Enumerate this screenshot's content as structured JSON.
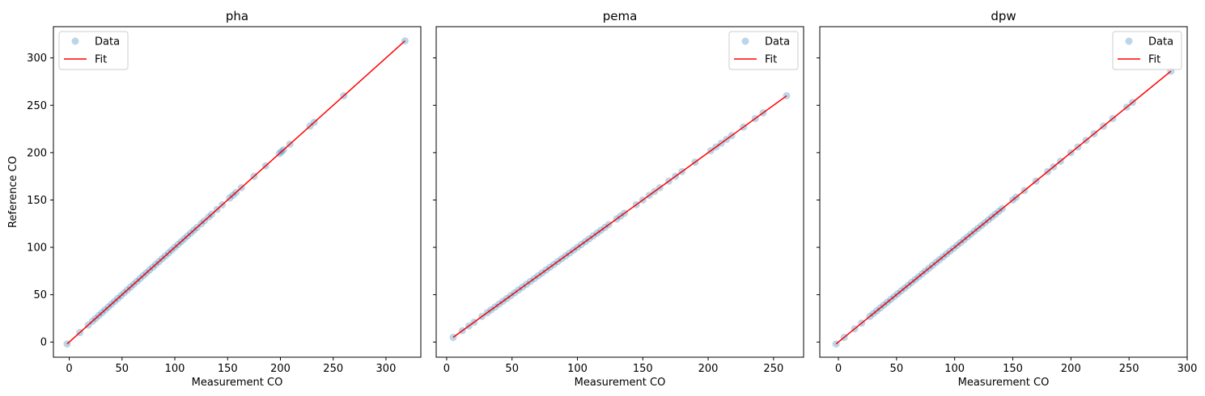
{
  "chart_data": [
    {
      "type": "scatter",
      "title": "pha",
      "xlabel": "Measurement CO",
      "ylabel": "Reference CO",
      "xlim": [
        -15,
        333
      ],
      "ylim": [
        -16,
        333
      ],
      "xticks": [
        0,
        50,
        100,
        150,
        200,
        250,
        300
      ],
      "yticks": [
        0,
        50,
        100,
        150,
        200,
        250,
        300
      ],
      "legend_position": "upper-left",
      "series": [
        {
          "name": "Data",
          "kind": "scatter",
          "x": [
            -2,
            10,
            18,
            22,
            25,
            28,
            31,
            34,
            37,
            40,
            43,
            46,
            49,
            52,
            55,
            58,
            61,
            64,
            67,
            70,
            73,
            76,
            79,
            82,
            85,
            88,
            91,
            94,
            97,
            100,
            103,
            106,
            109,
            112,
            115,
            118,
            121,
            125,
            128,
            132,
            135,
            140,
            145,
            152,
            155,
            158,
            163,
            175,
            186,
            199,
            201,
            203,
            209,
            228,
            232,
            260,
            318
          ],
          "y": [
            -2,
            10,
            18,
            22,
            25,
            28,
            31,
            34,
            37,
            40,
            43,
            46,
            49,
            52,
            55,
            58,
            61,
            64,
            67,
            70,
            73,
            76,
            79,
            82,
            85,
            88,
            91,
            94,
            97,
            100,
            103,
            106,
            109,
            112,
            115,
            118,
            121,
            125,
            128,
            132,
            135,
            140,
            145,
            152,
            155,
            158,
            163,
            175,
            186,
            199,
            201,
            203,
            209,
            228,
            232,
            260,
            318
          ]
        },
        {
          "name": "Fit",
          "kind": "line",
          "x": [
            -2,
            318
          ],
          "y": [
            -2,
            318
          ]
        }
      ]
    },
    {
      "type": "scatter",
      "title": "pema",
      "xlabel": "Measurement CO",
      "ylabel": "",
      "xlim": [
        -8,
        273
      ],
      "ylim": [
        -16,
        333
      ],
      "xticks": [
        0,
        50,
        100,
        150,
        200,
        250
      ],
      "yticks": [
        0,
        50,
        100,
        150,
        200,
        250,
        300
      ],
      "legend_position": "upper-right",
      "series": [
        {
          "name": "Data",
          "kind": "scatter",
          "x": [
            5,
            12,
            17,
            21,
            27,
            31,
            34,
            37,
            40,
            43,
            46,
            49,
            52,
            55,
            58,
            61,
            64,
            67,
            70,
            73,
            76,
            79,
            82,
            85,
            88,
            91,
            94,
            97,
            100,
            103,
            106,
            109,
            112,
            115,
            118,
            121,
            124,
            130,
            133,
            136,
            145,
            150,
            155,
            159,
            163,
            170,
            175,
            180,
            190,
            202,
            206,
            210,
            214,
            218,
            227,
            236,
            242,
            260
          ],
          "y": [
            5,
            12,
            17,
            21,
            27,
            31,
            34,
            37,
            40,
            43,
            46,
            49,
            52,
            55,
            58,
            61,
            64,
            67,
            70,
            73,
            76,
            79,
            82,
            85,
            88,
            91,
            94,
            97,
            100,
            103,
            106,
            109,
            112,
            115,
            118,
            121,
            124,
            130,
            133,
            136,
            145,
            150,
            155,
            159,
            163,
            170,
            175,
            180,
            190,
            202,
            206,
            210,
            214,
            218,
            227,
            236,
            242,
            260
          ]
        },
        {
          "name": "Fit",
          "kind": "line",
          "x": [
            5,
            260
          ],
          "y": [
            5,
            260
          ]
        }
      ]
    },
    {
      "type": "scatter",
      "title": "dpw",
      "xlabel": "Measurement CO",
      "ylabel": "",
      "xlim": [
        -16,
        300
      ],
      "ylim": [
        -16,
        333
      ],
      "xticks": [
        0,
        50,
        100,
        150,
        200,
        250,
        300
      ],
      "yticks": [
        0,
        50,
        100,
        150,
        200,
        250,
        300
      ],
      "legend_position": "upper-right",
      "series": [
        {
          "name": "Data",
          "kind": "scatter",
          "x": [
            -2,
            5,
            14,
            20,
            27,
            30,
            33,
            36,
            39,
            42,
            45,
            48,
            51,
            54,
            57,
            60,
            63,
            66,
            69,
            72,
            75,
            78,
            81,
            84,
            87,
            90,
            93,
            96,
            99,
            102,
            105,
            108,
            111,
            114,
            117,
            120,
            123,
            126,
            129,
            132,
            135,
            138,
            141,
            150,
            153,
            160,
            170,
            180,
            185,
            191,
            200,
            206,
            213,
            220,
            228,
            236,
            248,
            253,
            286
          ],
          "y": [
            -2,
            5,
            14,
            20,
            27,
            30,
            33,
            36,
            39,
            42,
            45,
            48,
            51,
            54,
            57,
            60,
            63,
            66,
            69,
            72,
            75,
            78,
            81,
            84,
            87,
            90,
            93,
            96,
            99,
            102,
            105,
            108,
            111,
            114,
            117,
            120,
            123,
            126,
            129,
            132,
            135,
            138,
            141,
            150,
            153,
            160,
            170,
            180,
            185,
            191,
            200,
            206,
            213,
            220,
            228,
            236,
            248,
            253,
            286
          ]
        },
        {
          "name": "Fit",
          "kind": "line",
          "x": [
            -2,
            286
          ],
          "y": [
            -2,
            286
          ]
        }
      ]
    }
  ],
  "colors": {
    "data_marker": "#1f77b4",
    "fit_line": "#ff0000",
    "axis": "#000000",
    "legend_border": "#cccccc"
  }
}
